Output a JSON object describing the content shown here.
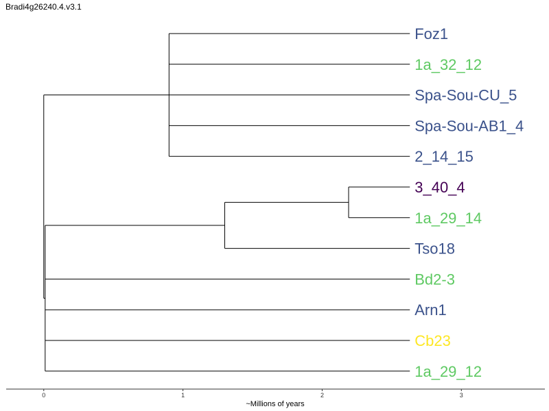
{
  "chart_data": {
    "type": "dendrogram",
    "title": "Bradi4g26240.4.v3.1",
    "xlabel": "~Millions of years",
    "xlim": [
      -0.27,
      3.6
    ],
    "xticks": [
      0,
      1,
      2,
      3
    ],
    "tips": [
      {
        "name": "Foz1",
        "color": "#3b528b"
      },
      {
        "name": "1a_32_12",
        "color": "#5ec962"
      },
      {
        "name": "Spa-Sou-CU_5",
        "color": "#3b528b"
      },
      {
        "name": "Spa-Sou-AB1_4",
        "color": "#3b528b"
      },
      {
        "name": "2_14_15",
        "color": "#3b528b"
      },
      {
        "name": "3_40_4",
        "color": "#440154"
      },
      {
        "name": "1a_29_14",
        "color": "#5ec962"
      },
      {
        "name": "Tso18",
        "color": "#3b528b"
      },
      {
        "name": "Bd2-3",
        "color": "#5ec962"
      },
      {
        "name": "Arn1",
        "color": "#3b528b"
      },
      {
        "name": "Cb23",
        "color": "#fde725"
      },
      {
        "name": "1a_29_12",
        "color": "#5ec962"
      }
    ],
    "tip_x": 2.63,
    "clades": [
      {
        "node_x": 0.9,
        "children": [
          0,
          1,
          2,
          3,
          4
        ]
      },
      {
        "node_x": 2.19,
        "children": [
          5,
          6
        ]
      },
      {
        "node_x": 1.3,
        "children": [
          5,
          6,
          7
        ]
      },
      {
        "node_x": 0.01,
        "children": [
          5,
          6,
          7,
          8,
          9,
          10,
          11
        ]
      },
      {
        "node_x": 0.0,
        "children": [
          0,
          1,
          2,
          3,
          4,
          5,
          6,
          7,
          8,
          9,
          10,
          11
        ]
      }
    ]
  }
}
